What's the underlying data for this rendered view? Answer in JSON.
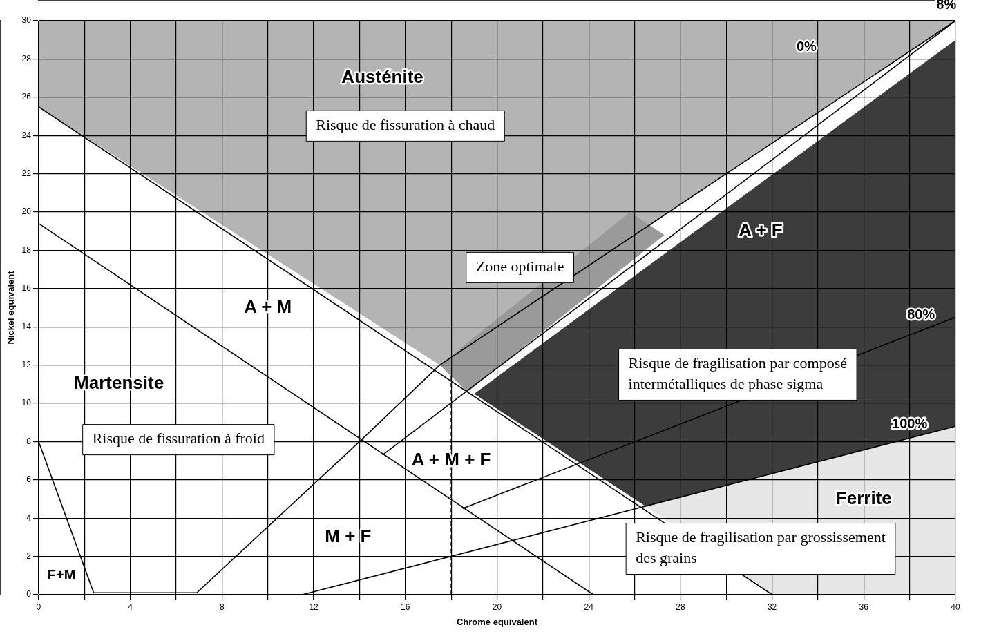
{
  "chart_data": {
    "type": "line",
    "xlabel": "Chrome equivalent",
    "ylabel": "Nickel equivalent",
    "xlim": [
      0,
      40
    ],
    "ylim": [
      0,
      30
    ],
    "xticks": [
      0,
      {
        "value": 2,
        "label": null
      },
      4,
      {
        "value": 6,
        "label": null
      },
      8,
      {
        "value": 10,
        "label": null
      },
      12,
      {
        "value": 14,
        "label": null
      },
      16,
      {
        "value": 18,
        "label": null
      },
      20,
      {
        "value": 22,
        "label": null
      },
      24,
      {
        "value": 26,
        "label": null
      },
      28,
      {
        "value": 30,
        "label": null
      },
      32,
      {
        "value": 34,
        "label": null
      },
      36,
      {
        "value": 38,
        "label": null
      },
      40
    ],
    "yticks": [
      0,
      2,
      4,
      6,
      8,
      10,
      12,
      14,
      16,
      18,
      20,
      22,
      24,
      26,
      28,
      30
    ],
    "grid": true,
    "legend": false,
    "marker": "none",
    "series": [
      {
        "type": "area",
        "color": "#b4b4b4",
        "x": [
          0,
          0,
          40,
          17.5
        ],
        "values": [
          25.5,
          30,
          30,
          12
        ]
      },
      {
        "type": "area",
        "color": "#3c3c3c",
        "x": [
          19,
          40,
          40,
          26.5
        ],
        "values": [
          10.5,
          29,
          8.8,
          4.6
        ]
      },
      {
        "type": "area",
        "color": "#e6e6e6",
        "x": [
          26.5,
          40,
          40,
          32
        ],
        "values": [
          4.6,
          8.8,
          0,
          0
        ]
      },
      {
        "type": "area",
        "color": "#9a9a9a",
        "x": [
          17.5,
          25.8,
          27.3,
          18.7
        ],
        "values": [
          12,
          20,
          18.8,
          10.6
        ]
      },
      {
        "color": "#000000",
        "x": [
          0,
          32
        ],
        "values": [
          25.5,
          0
        ]
      },
      {
        "color": "#000000",
        "x": [
          0,
          24.2
        ],
        "values": [
          19.4,
          0
        ]
      },
      {
        "color": "#000000",
        "x": [
          0,
          2.4,
          6.9,
          14,
          17.5,
          40
        ],
        "values": [
          8,
          0.1,
          0.1,
          8,
          12,
          30
        ]
      },
      {
        "color": "#000000",
        "x": [
          15,
          40
        ],
        "values": [
          7.3,
          30
        ]
      },
      {
        "color": "#000000",
        "x": [
          18.5,
          40
        ],
        "values": [
          4.5,
          14.5
        ]
      },
      {
        "color": "#000000",
        "x": [
          11.5,
          40
        ],
        "values": [
          0,
          8.8
        ]
      },
      {
        "color": "#000000",
        "line_style": "dashed",
        "x": [
          18,
          18
        ],
        "values": [
          0,
          11.5
        ]
      }
    ],
    "annotations": [
      "Austénite",
      "Risque de fissuration à chaud",
      "Zone optimale",
      "A + F",
      "A + M",
      "Martensite",
      "Risque de fragilisation par composé\nintermétalliques de phase sigma",
      "Risque de fissuration à froid",
      "A + M + F",
      "Ferrite",
      "M + F",
      "Risque de fragilisation par grossissement\ndes grains",
      "F+M",
      "0%",
      "8%",
      "80%",
      "100%"
    ]
  }
}
